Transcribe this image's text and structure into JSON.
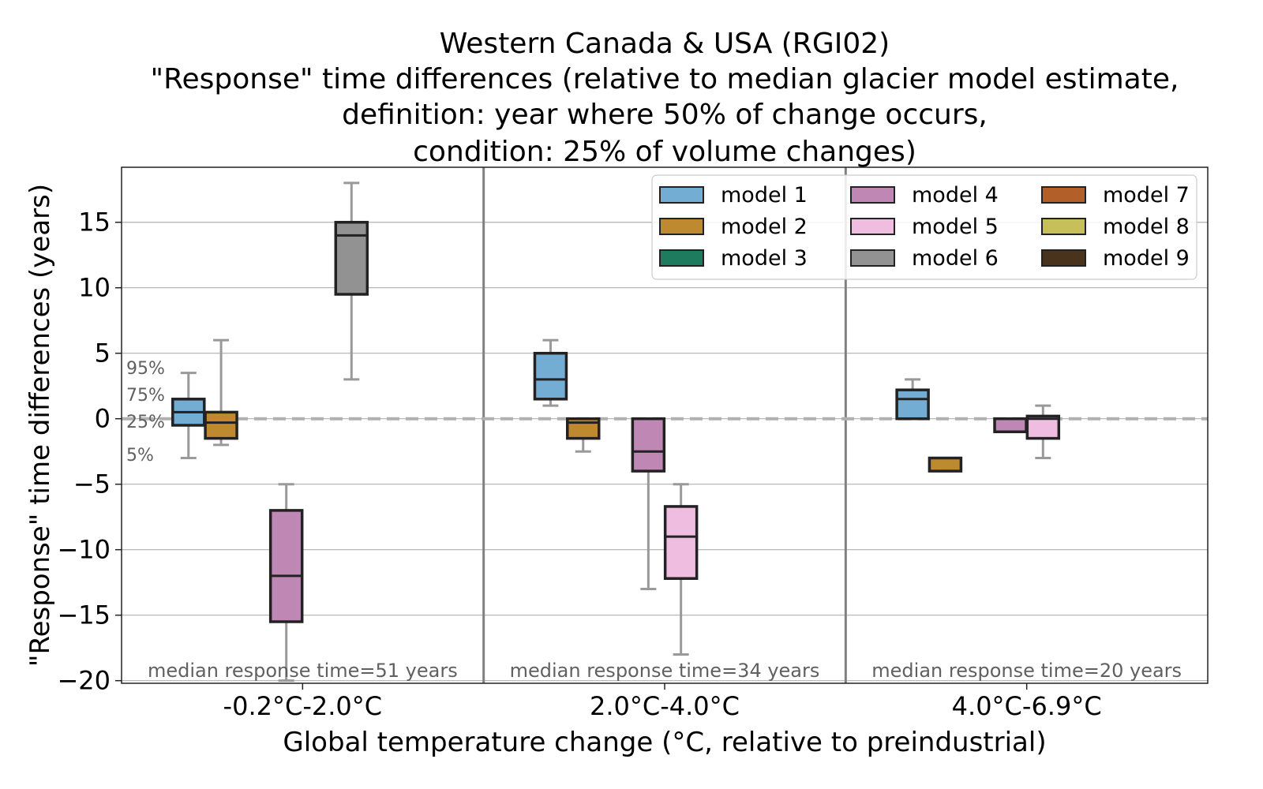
{
  "chart_data": {
    "type": "box",
    "title_lines": [
      "Western Canada & USA (RGI02)",
      "\"Response\" time differences (relative to median glacier model estimate,",
      "definition: year where 50% of change occurs,",
      "condition: 25% of volume changes)"
    ],
    "xlabel": "Global temperature change (°C, relative to preindustrial)",
    "ylabel": "\"Response\" time differences (years)",
    "ylim": [
      -20.2,
      19.2
    ],
    "yticks": [
      -20,
      -15,
      -10,
      -5,
      0,
      5,
      10,
      15
    ],
    "ytick_labels": [
      "−20",
      "−15",
      "−10",
      "−5",
      "0",
      "5",
      "10",
      "15"
    ],
    "grid": true,
    "categories": [
      "-0.2°C-2.0°C",
      "2.0°C-4.0°C",
      "4.0°C-6.9°C"
    ],
    "annotations": [
      "median response time=51 years",
      "median response time=34 years",
      "median response time=20 years"
    ],
    "percentile_labels": [
      "95%",
      "75%",
      "25%",
      "5%"
    ],
    "legend_position": "top-right",
    "series": [
      {
        "name": "model 1",
        "color": "#73add4",
        "boxes": [
          {
            "category": 0,
            "q05": -3,
            "q25": -0.5,
            "median": 0.5,
            "q75": 1.5,
            "q95": 3.5
          },
          {
            "category": 1,
            "q05": 1,
            "q25": 1.5,
            "median": 3,
            "q75": 5,
            "q95": 6
          },
          {
            "category": 2,
            "q05": 0,
            "q25": 0,
            "median": 1.5,
            "q75": 2.2,
            "q95": 3
          }
        ]
      },
      {
        "name": "model 2",
        "color": "#bf8a2f",
        "boxes": [
          {
            "category": 0,
            "q05": -2,
            "q25": -1.5,
            "median": -0.3,
            "q75": 0.5,
            "q95": 6
          },
          {
            "category": 1,
            "q05": -2.5,
            "q25": -1.5,
            "median": -0.3,
            "q75": 0,
            "q95": 0
          },
          {
            "category": 2,
            "q05": -4,
            "q25": -4,
            "median": -3,
            "q75": -3,
            "q95": -3
          }
        ]
      },
      {
        "name": "model 3",
        "color": "#1e7b5e",
        "boxes": []
      },
      {
        "name": "model 4",
        "color": "#bf87b4",
        "boxes": [
          {
            "category": 0,
            "q05": -20,
            "q25": -15.5,
            "median": -12,
            "q75": -7,
            "q95": -5
          },
          {
            "category": 1,
            "q05": -13,
            "q25": -4,
            "median": -2.5,
            "q75": 0,
            "q95": 0
          },
          {
            "category": 2,
            "q05": -1,
            "q25": -1,
            "median": -1,
            "q75": 0,
            "q95": 0
          }
        ]
      },
      {
        "name": "model 5",
        "color": "#eebde0",
        "boxes": [
          {
            "category": 1,
            "q05": -18,
            "q25": -12.2,
            "median": -9,
            "q75": -6.7,
            "q95": -5
          },
          {
            "category": 2,
            "q05": -3,
            "q25": -1.5,
            "median": 0,
            "q75": 0.2,
            "q95": 1
          }
        ]
      },
      {
        "name": "model 6",
        "color": "#929292",
        "boxes": [
          {
            "category": 0,
            "q05": 3,
            "q25": 9.5,
            "median": 14,
            "q75": 15,
            "q95": 18
          }
        ]
      },
      {
        "name": "model 7",
        "color": "#b35f2a",
        "boxes": []
      },
      {
        "name": "model 8",
        "color": "#c6bf5a",
        "boxes": []
      },
      {
        "name": "model 9",
        "color": "#4a331c",
        "boxes": []
      }
    ]
  }
}
